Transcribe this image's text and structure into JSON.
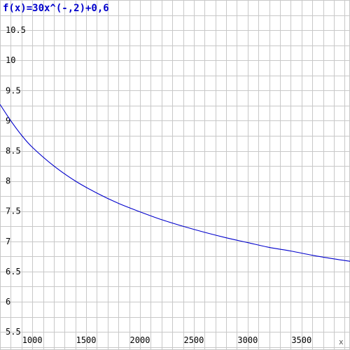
{
  "chart_data": {
    "type": "line",
    "title": "f(x)=30x^(-,2)+0,6",
    "xlabel": "x",
    "ylabel": "",
    "xlim": [
      700,
      3950
    ],
    "ylim": [
      5.2,
      11
    ],
    "x_ticks": [
      1000,
      1500,
      2000,
      2500,
      3000,
      3500
    ],
    "y_ticks": [
      5.5,
      6,
      6.5,
      7,
      7.5,
      8,
      8.5,
      9,
      9.5,
      10,
      10.5
    ],
    "x_tick_labels": [
      "1000",
      "1500",
      "2000",
      "2500",
      "3000",
      "3500"
    ],
    "y_tick_labels": [
      "5.5",
      "6",
      "6.5",
      "7",
      "7.5",
      "8",
      "8.5",
      "9",
      "9.5",
      "10",
      "10.5"
    ],
    "grid": true,
    "series": [
      {
        "x": [
          700,
          800,
          900,
          1000,
          1200,
          1400,
          1600,
          1800,
          2000,
          2200,
          2400,
          2600,
          2800,
          3000,
          3200,
          3400,
          3600,
          3800,
          3950
        ],
        "y": [
          9.27,
          9.0,
          8.76,
          8.56,
          8.25,
          8.0,
          7.8,
          7.63,
          7.49,
          7.36,
          7.25,
          7.15,
          7.06,
          6.98,
          6.9,
          6.84,
          6.77,
          6.71,
          6.67
        ]
      }
    ],
    "colors": {
      "curve": "#0000cc",
      "title": "#0000cc",
      "grid": "#c8c8c8"
    }
  }
}
